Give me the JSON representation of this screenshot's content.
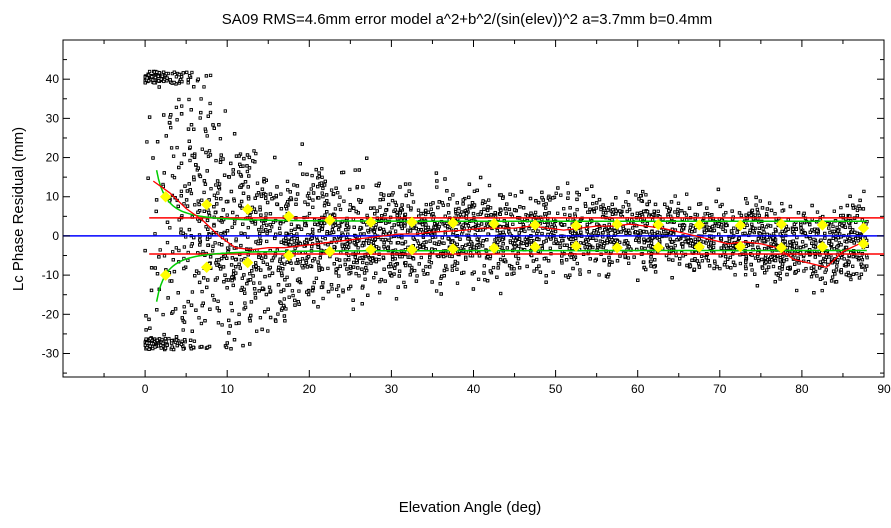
{
  "chart_data": {
    "type": "scatter",
    "title": "SA09 RMS=4.6mm error model a^2+b^2/(sin(elev))^2 a=3.7mm b=0.4mm",
    "xlabel": "Elevation Angle (deg)",
    "ylabel": "Lc Phase Residual (mm)",
    "xlim": [
      -10,
      90
    ],
    "ylim": [
      -36,
      50
    ],
    "xticks": [
      0,
      10,
      20,
      30,
      40,
      50,
      60,
      70,
      80,
      90
    ],
    "yticks": [
      -30,
      -20,
      -10,
      0,
      10,
      20,
      30,
      40
    ],
    "grid": false,
    "colors": {
      "points": "#000000",
      "zero_line": "#0000ff",
      "rms_lines": "#ff0000",
      "mean_curve": "#ff0000",
      "model_curve": "#00cc00",
      "bin_rms": "#ffff00"
    },
    "zero_line": 0,
    "rms_level": 4.6,
    "bin_rms_points": {
      "x": [
        2.5,
        7.5,
        12.5,
        17.5,
        22.5,
        27.5,
        32.5,
        37.5,
        42.5,
        47.5,
        52.5,
        57.5,
        62.5,
        67.5,
        72.5,
        77.5,
        82.5,
        87.5
      ],
      "y": [
        10.0,
        8.0,
        6.8,
        5.0,
        4.0,
        3.5,
        3.5,
        3.3,
        3.1,
        2.8,
        2.6,
        3.0,
        2.9,
        2.8,
        2.7,
        3.0,
        2.8,
        2.0
      ]
    },
    "mean_curve": {
      "x": [
        1,
        3,
        5,
        7,
        9,
        11,
        13,
        15,
        17,
        19,
        21,
        23,
        25,
        27,
        29,
        31,
        33,
        35,
        37,
        39,
        41,
        43,
        45,
        47,
        49,
        51,
        53,
        55,
        57,
        59,
        61,
        63,
        65,
        67,
        69,
        71,
        73,
        75,
        77,
        79,
        81,
        83,
        85,
        87
      ],
      "y": [
        14,
        11,
        7,
        4,
        0,
        -3,
        -3.5,
        -3,
        -3,
        -2.5,
        -2,
        -1.5,
        -1,
        -0.5,
        0,
        0.5,
        0.5,
        1,
        1.2,
        1.5,
        2,
        2,
        2,
        2.5,
        2,
        1.5,
        2,
        2.5,
        2.5,
        3,
        2.5,
        2,
        1,
        0,
        -1,
        -2,
        -1.5,
        -2,
        -3,
        -6,
        -7,
        -8,
        -4,
        -2
      ]
    },
    "model": {
      "a": 3.7,
      "b": 0.4
    },
    "scatter_summary": {
      "note_points_rendered": true,
      "x_range": [
        0,
        88
      ],
      "envelope_max_y": 42,
      "envelope_min_y": -29
    }
  }
}
